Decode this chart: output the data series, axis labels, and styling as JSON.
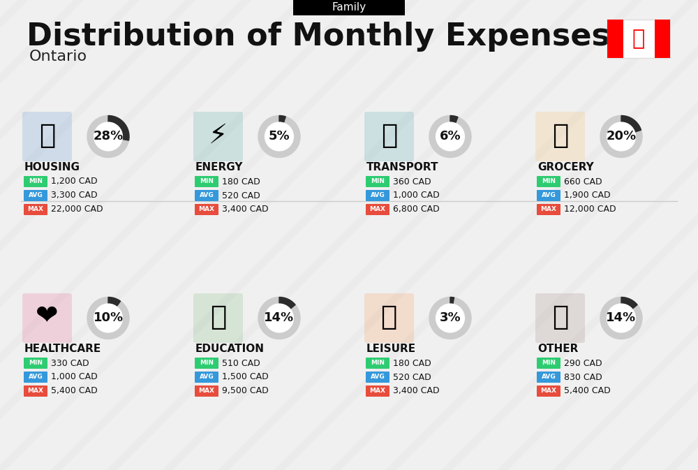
{
  "title": "Distribution of Monthly Expenses",
  "subtitle": "Ontario",
  "supertitle": "Family",
  "background_color": "#f0f0f0",
  "categories": [
    {
      "name": "HOUSING",
      "percent": 28,
      "min": "1,200 CAD",
      "avg": "3,300 CAD",
      "max": "22,000 CAD",
      "emoji": "🏗"
    },
    {
      "name": "ENERGY",
      "percent": 5,
      "min": "180 CAD",
      "avg": "520 CAD",
      "max": "3,400 CAD",
      "emoji": "⚡"
    },
    {
      "name": "TRANSPORT",
      "percent": 6,
      "min": "360 CAD",
      "avg": "1,000 CAD",
      "max": "6,800 CAD",
      "emoji": "🚌"
    },
    {
      "name": "GROCERY",
      "percent": 20,
      "min": "660 CAD",
      "avg": "1,900 CAD",
      "max": "12,000 CAD",
      "emoji": "🛒"
    },
    {
      "name": "HEALTHCARE",
      "percent": 10,
      "min": "330 CAD",
      "avg": "1,000 CAD",
      "max": "5,400 CAD",
      "emoji": "❤"
    },
    {
      "name": "EDUCATION",
      "percent": 14,
      "min": "510 CAD",
      "avg": "1,500 CAD",
      "max": "9,500 CAD",
      "emoji": "🎓"
    },
    {
      "name": "LEISURE",
      "percent": 3,
      "min": "180 CAD",
      "avg": "520 CAD",
      "max": "3,400 CAD",
      "emoji": "🛍"
    },
    {
      "name": "OTHER",
      "percent": 14,
      "min": "290 CAD",
      "avg": "830 CAD",
      "max": "5,400 CAD",
      "emoji": "💰"
    }
  ],
  "min_color": "#2ecc71",
  "avg_color": "#3498db",
  "max_color": "#e74c3c",
  "donut_filled_color": "#2c2c2c",
  "donut_empty_color": "#cccccc",
  "icon_images": [
    "housing",
    "energy",
    "transport",
    "grocery",
    "healthcare",
    "education",
    "leisure",
    "other"
  ]
}
